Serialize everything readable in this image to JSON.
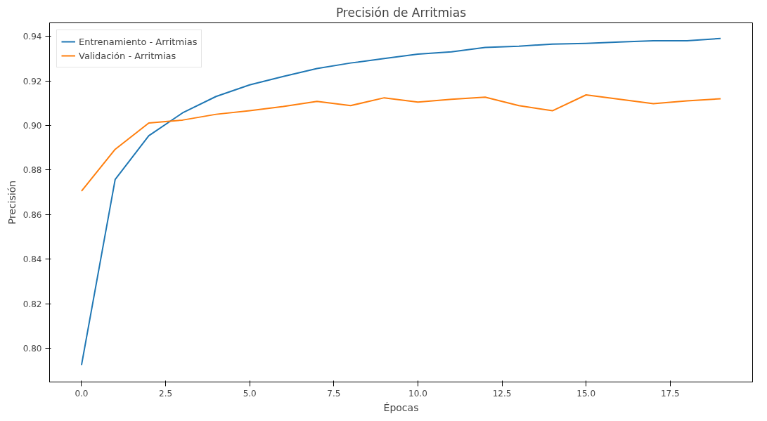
{
  "chart_data": {
    "type": "line",
    "title": "Precisión de Arritmias",
    "xlabel": "Épocas",
    "ylabel": "Precisión",
    "x": [
      0,
      1,
      2,
      3,
      4,
      5,
      6,
      7,
      8,
      9,
      10,
      11,
      12,
      13,
      14,
      15,
      16,
      17,
      18,
      19
    ],
    "series": [
      {
        "name": "Entrenamiento - Arritmias",
        "color": "#1f77b4",
        "values": [
          0.7926,
          0.8758,
          0.8954,
          0.9056,
          0.913,
          0.9182,
          0.922,
          0.9255,
          0.928,
          0.93,
          0.932,
          0.933,
          0.935,
          0.9355,
          0.9365,
          0.9368,
          0.9374,
          0.938,
          0.938,
          0.939
        ]
      },
      {
        "name": "Validación - Arritmias",
        "color": "#ff7f0e",
        "values": [
          0.8706,
          0.8893,
          0.9011,
          0.9024,
          0.905,
          0.9066,
          0.9085,
          0.9108,
          0.9089,
          0.9124,
          0.9105,
          0.9117,
          0.9127,
          0.9089,
          0.9066,
          0.9137,
          0.9117,
          0.9098,
          0.911,
          0.912
        ]
      }
    ],
    "xlim": [
      -0.95,
      19.95
    ],
    "ylim": [
      0.785,
      0.946
    ],
    "xticks": [
      {
        "value": 0,
        "label": "0.0"
      },
      {
        "value": 2.5,
        "label": "2.5"
      },
      {
        "value": 5,
        "label": "5.0"
      },
      {
        "value": 7.5,
        "label": "7.5"
      },
      {
        "value": 10,
        "label": "10.0"
      },
      {
        "value": 12.5,
        "label": "12.5"
      },
      {
        "value": 15,
        "label": "15.0"
      },
      {
        "value": 17.5,
        "label": "17.5"
      }
    ],
    "yticks": [
      {
        "value": 0.8,
        "label": "0.80"
      },
      {
        "value": 0.82,
        "label": "0.82"
      },
      {
        "value": 0.84,
        "label": "0.84"
      },
      {
        "value": 0.86,
        "label": "0.86"
      },
      {
        "value": 0.88,
        "label": "0.88"
      },
      {
        "value": 0.9,
        "label": "0.90"
      },
      {
        "value": 0.92,
        "label": "0.92"
      },
      {
        "value": 0.94,
        "label": "0.94"
      }
    ],
    "legend": "top left",
    "line_style": "solid"
  }
}
